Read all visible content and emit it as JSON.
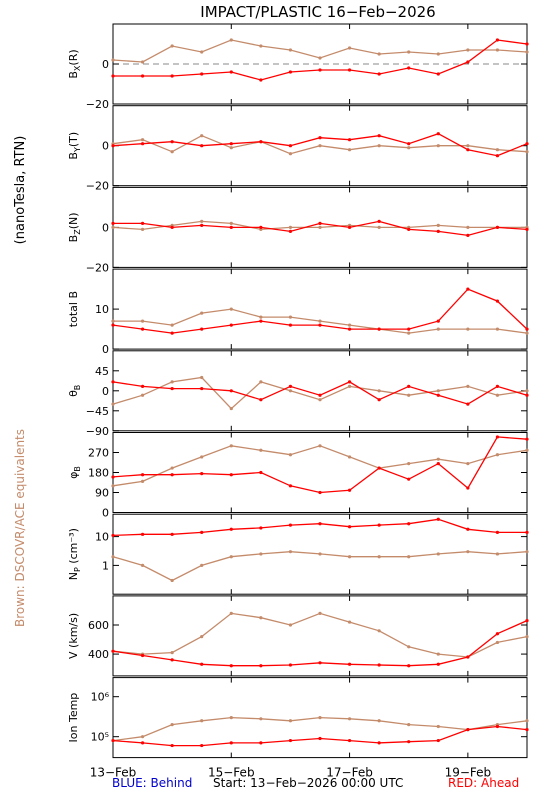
{
  "title": "IMPACT/PLASTIC   16−Feb−2026",
  "left_labels": {
    "units": "(nanoTesla, RTN)",
    "brown_note": "Brown: DSCOVR/ACE equivalents"
  },
  "footer": {
    "behind": "BLUE: Behind",
    "start": "Start: 13−Feb−2026 00:00 UTC",
    "ahead": "RED: Ahead"
  },
  "colors": {
    "ahead": "#ff0000",
    "equivalent": "#c48b6b",
    "behind": "#0000cc"
  },
  "chart_data": {
    "type": "line",
    "x_range_days": [
      "13-Feb-2026 00:00",
      "20-Feb-2026 00:00"
    ],
    "x_ticks": [
      "13−Feb",
      "15−Feb",
      "17−Feb",
      "19−Feb"
    ],
    "series_names": [
      "Ahead",
      "DSCOVR/ACE equivalents"
    ],
    "panels": [
      {
        "id": "bx",
        "ylabel_main": "B",
        "ylabel_sub": "X",
        "ylabel_tail": "(R)",
        "scale": "linear",
        "ylim": [
          -20,
          20
        ],
        "ticks": [
          {
            "v": 0,
            "label": "0"
          },
          {
            "v": -20,
            "label": "−20"
          }
        ],
        "dashed_zero": true,
        "red": {
          "x": [
            0,
            0.5,
            1,
            1.5,
            2,
            2.5,
            3,
            3.5,
            4,
            4.5,
            5,
            5.5,
            6,
            6.5,
            7
          ],
          "y": [
            -6,
            -6,
            -6,
            -5,
            -4,
            -8,
            -4,
            -3,
            -3,
            -5,
            -2,
            -5,
            1,
            12,
            10
          ]
        },
        "brown": {
          "x": [
            0,
            0.5,
            1,
            1.5,
            2,
            2.5,
            3,
            3.5,
            4,
            4.5,
            5,
            5.5,
            6,
            6.5,
            7
          ],
          "y": [
            2,
            1,
            9,
            6,
            12,
            9,
            7,
            3,
            8,
            5,
            6,
            5,
            7,
            7,
            6
          ]
        }
      },
      {
        "id": "by",
        "ylabel_main": "B",
        "ylabel_sub": "Y",
        "ylabel_tail": "(T)",
        "scale": "linear",
        "ylim": [
          -20,
          20
        ],
        "ticks": [
          {
            "v": 0,
            "label": "0"
          },
          {
            "v": -20,
            "label": "−20"
          }
        ],
        "dashed_zero": false,
        "red": {
          "x": [
            0,
            0.5,
            1,
            1.5,
            2,
            2.5,
            3,
            3.5,
            4,
            4.5,
            5,
            5.5,
            6,
            6.5,
            7
          ],
          "y": [
            0,
            1,
            2,
            0,
            1,
            2,
            0,
            4,
            3,
            5,
            1,
            6,
            -2,
            -5,
            1
          ]
        },
        "brown": {
          "x": [
            0,
            0.5,
            1,
            1.5,
            2,
            2.5,
            3,
            3.5,
            4,
            4.5,
            5,
            5.5,
            6,
            6.5,
            7
          ],
          "y": [
            1,
            3,
            -3,
            5,
            -1,
            2,
            -4,
            0,
            -2,
            0,
            -1,
            0,
            0,
            -2,
            -3
          ]
        }
      },
      {
        "id": "bz",
        "ylabel_main": "B",
        "ylabel_sub": "Z",
        "ylabel_tail": "(N)",
        "scale": "linear",
        "ylim": [
          -20,
          20
        ],
        "ticks": [
          {
            "v": 0,
            "label": "0"
          },
          {
            "v": -20,
            "label": "−20"
          }
        ],
        "dashed_zero": false,
        "red": {
          "x": [
            0,
            0.5,
            1,
            1.5,
            2,
            2.5,
            3,
            3.5,
            4,
            4.5,
            5,
            5.5,
            6,
            6.5,
            7
          ],
          "y": [
            2,
            2,
            0,
            1,
            0,
            0,
            -2,
            2,
            0,
            3,
            -1,
            -2,
            -4,
            0,
            -1
          ]
        },
        "brown": {
          "x": [
            0,
            0.5,
            1,
            1.5,
            2,
            2.5,
            3,
            3.5,
            4,
            4.5,
            5,
            5.5,
            6,
            6.5,
            7
          ],
          "y": [
            0,
            -1,
            1,
            3,
            2,
            -1,
            0,
            0,
            1,
            0,
            0,
            1,
            0,
            0,
            0
          ]
        }
      },
      {
        "id": "btot",
        "ylabel_main": "total B",
        "ylabel_sub": "",
        "ylabel_tail": "",
        "scale": "linear",
        "ylim": [
          0,
          20
        ],
        "ticks": [
          {
            "v": 10,
            "label": "10"
          },
          {
            "v": 0,
            "label": "0"
          }
        ],
        "dashed_zero": false,
        "red": {
          "x": [
            0,
            0.5,
            1,
            1.5,
            2,
            2.5,
            3,
            3.5,
            4,
            4.5,
            5,
            5.5,
            6,
            6.5,
            7
          ],
          "y": [
            6,
            5,
            4,
            5,
            6,
            7,
            6,
            6,
            5,
            5,
            5,
            7,
            15,
            12,
            5
          ]
        },
        "brown": {
          "x": [
            0,
            0.5,
            1,
            1.5,
            2,
            2.5,
            3,
            3.5,
            4,
            4.5,
            5,
            5.5,
            6,
            6.5,
            7
          ],
          "y": [
            7,
            7,
            6,
            9,
            10,
            8,
            8,
            7,
            6,
            5,
            4,
            5,
            5,
            5,
            4
          ]
        }
      },
      {
        "id": "theta",
        "ylabel_main": "θ",
        "ylabel_sub": "B",
        "ylabel_tail": "",
        "scale": "linear",
        "ylim": [
          -90,
          90
        ],
        "ticks": [
          {
            "v": 45,
            "label": "45"
          },
          {
            "v": 0,
            "label": "0"
          },
          {
            "v": -45,
            "label": "−45"
          },
          {
            "v": -90,
            "label": "−90"
          }
        ],
        "dashed_zero": false,
        "red": {
          "x": [
            0,
            0.5,
            1,
            1.5,
            2,
            2.5,
            3,
            3.5,
            4,
            4.5,
            5,
            5.5,
            6,
            6.5,
            7
          ],
          "y": [
            20,
            10,
            5,
            5,
            0,
            -20,
            10,
            -10,
            20,
            -20,
            10,
            -10,
            -30,
            10,
            -10
          ]
        },
        "brown": {
          "x": [
            0,
            0.5,
            1,
            1.5,
            2,
            2.5,
            3,
            3.5,
            4,
            4.5,
            5,
            5.5,
            6,
            6.5,
            7
          ],
          "y": [
            -30,
            -10,
            20,
            30,
            -40,
            20,
            0,
            -20,
            10,
            0,
            -10,
            0,
            10,
            -10,
            0
          ]
        }
      },
      {
        "id": "phi",
        "ylabel_main": "φ",
        "ylabel_sub": "B",
        "ylabel_tail": "",
        "scale": "linear",
        "ylim": [
          0,
          360
        ],
        "ticks": [
          {
            "v": 270,
            "label": "270"
          },
          {
            "v": 180,
            "label": "180"
          },
          {
            "v": 90,
            "label": "90"
          },
          {
            "v": 0,
            "label": "0"
          }
        ],
        "dashed_zero": false,
        "red": {
          "x": [
            0,
            0.5,
            1,
            1.5,
            2,
            2.5,
            3,
            3.5,
            4,
            4.5,
            5,
            5.5,
            6,
            6.5,
            7
          ],
          "y": [
            160,
            170,
            170,
            175,
            170,
            180,
            120,
            90,
            100,
            200,
            150,
            220,
            110,
            340,
            330
          ]
        },
        "brown": {
          "x": [
            0,
            0.5,
            1,
            1.5,
            2,
            2.5,
            3,
            3.5,
            4,
            4.5,
            5,
            5.5,
            6,
            6.5,
            7
          ],
          "y": [
            120,
            140,
            200,
            250,
            300,
            280,
            260,
            300,
            250,
            200,
            220,
            240,
            220,
            260,
            280
          ]
        }
      },
      {
        "id": "np",
        "ylabel_main": "N",
        "ylabel_sub": "P",
        "ylabel_tail": " (cm⁻³)",
        "scale": "log",
        "ylim": [
          0.1,
          60
        ],
        "ticks": [
          {
            "v": 10,
            "label": "10"
          },
          {
            "v": 1,
            "label": "1"
          }
        ],
        "dashed_zero": false,
        "red": {
          "x": [
            0,
            0.5,
            1,
            1.5,
            2,
            2.5,
            3,
            3.5,
            4,
            4.5,
            5,
            5.5,
            6,
            6.5,
            7
          ],
          "y": [
            11,
            12,
            12,
            14,
            18,
            20,
            25,
            28,
            22,
            25,
            28,
            40,
            18,
            14,
            14
          ]
        },
        "brown": {
          "x": [
            0,
            0.5,
            1,
            1.5,
            2,
            2.5,
            3,
            3.5,
            4,
            4.5,
            5,
            5.5,
            6,
            6.5,
            7
          ],
          "y": [
            2,
            1,
            0.3,
            1,
            2,
            2.5,
            3,
            2.5,
            2,
            2,
            2,
            2.5,
            3,
            2.5,
            3
          ]
        }
      },
      {
        "id": "v",
        "ylabel_main": "V (km/s)",
        "ylabel_sub": "",
        "ylabel_tail": "",
        "scale": "linear",
        "ylim": [
          250,
          800
        ],
        "ticks": [
          {
            "v": 600,
            "label": "600"
          },
          {
            "v": 400,
            "label": "400"
          }
        ],
        "dashed_zero": false,
        "red": {
          "x": [
            0,
            0.5,
            1,
            1.5,
            2,
            2.5,
            3,
            3.5,
            4,
            4.5,
            5,
            5.5,
            6,
            6.5,
            7
          ],
          "y": [
            420,
            390,
            360,
            330,
            320,
            320,
            325,
            340,
            330,
            325,
            320,
            330,
            380,
            540,
            630
          ]
        },
        "brown": {
          "x": [
            0,
            0.5,
            1,
            1.5,
            2,
            2.5,
            3,
            3.5,
            4,
            4.5,
            5,
            5.5,
            6,
            6.5,
            7
          ],
          "y": [
            420,
            400,
            410,
            520,
            680,
            650,
            600,
            680,
            620,
            560,
            450,
            400,
            380,
            480,
            520
          ]
        }
      },
      {
        "id": "temp",
        "ylabel_main": "Ion Temp",
        "ylabel_sub": "",
        "ylabel_tail": "",
        "scale": "log",
        "ylim": [
          30000,
          3000000
        ],
        "ticks": [
          {
            "v": 1000000,
            "label": "10⁶"
          },
          {
            "v": 100000,
            "label": "10⁵"
          }
        ],
        "dashed_zero": false,
        "red": {
          "x": [
            0,
            0.5,
            1,
            1.5,
            2,
            2.5,
            3,
            3.5,
            4,
            4.5,
            5,
            5.5,
            6,
            6.5,
            7
          ],
          "y": [
            80000,
            70000,
            60000,
            60000,
            70000,
            70000,
            80000,
            90000,
            80000,
            70000,
            75000,
            80000,
            150000,
            180000,
            150000
          ]
        },
        "brown": {
          "x": [
            0,
            0.5,
            1,
            1.5,
            2,
            2.5,
            3,
            3.5,
            4,
            4.5,
            5,
            5.5,
            6,
            6.5,
            7
          ],
          "y": [
            80000,
            100000,
            200000,
            250000,
            300000,
            280000,
            250000,
            300000,
            280000,
            250000,
            200000,
            180000,
            150000,
            200000,
            250000
          ]
        }
      }
    ]
  }
}
